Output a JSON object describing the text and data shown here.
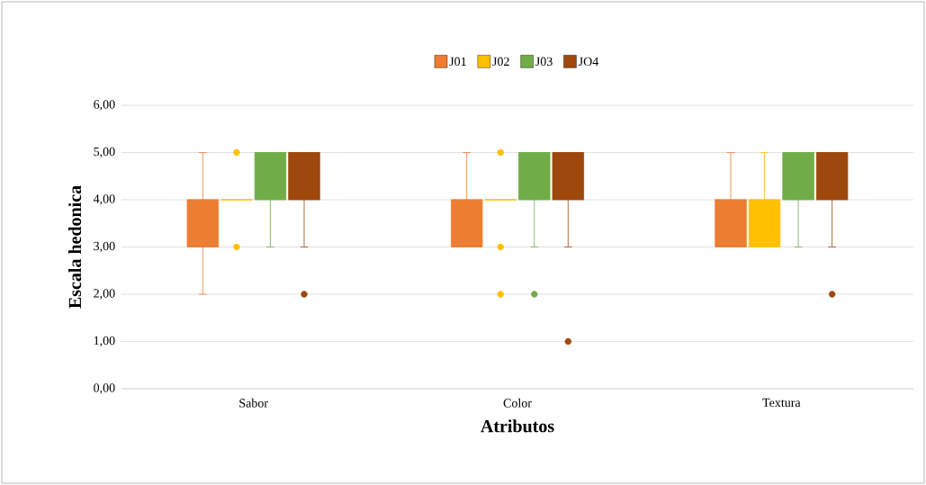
{
  "chart_data": {
    "type": "box",
    "xlabel": "Atributos",
    "ylabel": "Escala hedonica",
    "categories": [
      "Sabor",
      "Color",
      "Textura"
    ],
    "ylim": [
      0,
      6
    ],
    "yticks": [
      {
        "value": 0,
        "label": "0,00"
      },
      {
        "value": 1,
        "label": "1,00"
      },
      {
        "value": 2,
        "label": "2,00"
      },
      {
        "value": 3,
        "label": "3,00"
      },
      {
        "value": 4,
        "label": "4,00"
      },
      {
        "value": 5,
        "label": "5,00"
      },
      {
        "value": 6,
        "label": "6,00"
      }
    ],
    "grid": "y",
    "legend": "top",
    "marker": "circle",
    "series": [
      {
        "name": "J01",
        "color": "#ed7d31",
        "boxes": [
          {
            "low": 2,
            "q1": 3,
            "median": 4,
            "q3": 4,
            "high": 5
          },
          {
            "low": 3,
            "q1": 3,
            "median": 4,
            "q3": 4,
            "high": 5
          },
          {
            "low": 3,
            "q1": 3,
            "median": 4,
            "q3": 4,
            "high": 5
          }
        ]
      },
      {
        "name": "J02",
        "color": "#ffc000",
        "boxes": [
          {
            "low": 4,
            "q1": 4,
            "median": 4,
            "q3": 4,
            "high": 4,
            "outliers": [
              3,
              5
            ]
          },
          {
            "low": 4,
            "q1": 4,
            "median": 4,
            "q3": 4,
            "high": 4,
            "outliers": [
              2,
              3,
              5
            ]
          },
          {
            "low": 3,
            "q1": 3,
            "median": 4,
            "q3": 4,
            "high": 5
          }
        ]
      },
      {
        "name": "J03",
        "color": "#70ad47",
        "boxes": [
          {
            "low": 3,
            "q1": 4,
            "median": 5,
            "q3": 5,
            "high": 5
          },
          {
            "low": 3,
            "q1": 4,
            "median": 5,
            "q3": 5,
            "high": 5,
            "outliers": [
              2
            ]
          },
          {
            "low": 3,
            "q1": 4,
            "median": 5,
            "q3": 5,
            "high": 5
          }
        ]
      },
      {
        "name": "JO4",
        "color": "#9e480e",
        "boxes": [
          {
            "low": 3,
            "q1": 4,
            "median": 5,
            "q3": 5,
            "high": 5,
            "outliers": [
              2
            ]
          },
          {
            "low": 3,
            "q1": 4,
            "median": 5,
            "q3": 5,
            "high": 5,
            "outliers": [
              1
            ]
          },
          {
            "low": 3,
            "q1": 4,
            "median": 5,
            "q3": 5,
            "high": 5,
            "outliers": [
              2
            ]
          }
        ]
      }
    ]
  }
}
